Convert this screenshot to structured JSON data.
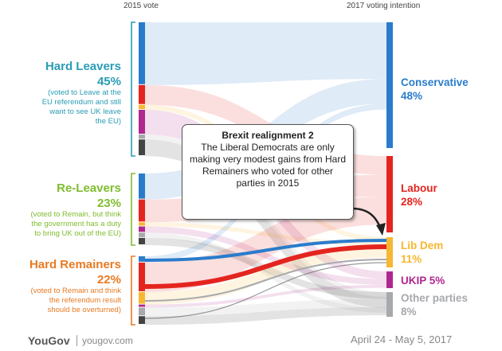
{
  "header": {
    "left": "2015 vote",
    "right": "2017 voting intention"
  },
  "chart_data": {
    "type": "sankey",
    "title": "Brexit realignment 2",
    "annotation": "The Liberal Democrats are only making very modest gains from Hard Remainers who voted for other parties in 2015",
    "left_nodes": [
      {
        "id": "hard-leavers",
        "label": "Hard Leavers",
        "pct_label": "45%",
        "value": 45,
        "color": "#2a9cb5",
        "note": [
          "(voted to Leave at the",
          "EU referendum and still",
          "want to see UK leave",
          "the EU)"
        ]
      },
      {
        "id": "re-leavers",
        "label": "Re-Leavers",
        "pct_label": "23%",
        "value": 23,
        "color": "#80bc2f",
        "note": [
          "(voted to Remain, but think",
          "the government has a duty",
          "to bring UK out of the EU)"
        ]
      },
      {
        "id": "hard-remainers",
        "label": "Hard Remainers",
        "pct_label": "22%",
        "value": 22,
        "color": "#e97a22",
        "note": [
          "(voted to Remain and think",
          "the referendum result",
          "should be overturned)"
        ]
      }
    ],
    "right_nodes": [
      {
        "id": "conservative",
        "label": "Conservative",
        "pct_label": "48%",
        "value": 48,
        "color": "#2a7ccb"
      },
      {
        "id": "labour",
        "label": "Labour",
        "pct_label": "28%",
        "value": 28,
        "color": "#e4251f"
      },
      {
        "id": "lib-dem",
        "label": "Lib Dem",
        "pct_label": "11%",
        "value": 11,
        "color": "#f7b731"
      },
      {
        "id": "ukip",
        "label": "UKIP",
        "pct_label": "5%",
        "value": 5,
        "color": "#b0288f"
      },
      {
        "id": "other-parties",
        "label": "Other parties",
        "pct_label": "8%",
        "value": 8,
        "color": "#a7a9ac"
      }
    ],
    "left_bar_segments": {
      "hard-leavers": [
        "#2a7ccb",
        "#e4251f",
        "#f7b731",
        "#b0288f",
        "#a7a9ac",
        "#444444"
      ],
      "re-leavers": [
        "#2a7ccb",
        "#e4251f",
        "#f7b731",
        "#b0288f",
        "#a7a9ac",
        "#444444"
      ],
      "hard-remainers": [
        "#2a7ccb",
        "#e4251f",
        "#f7b731",
        "#b0288f",
        "#a7a9ac",
        "#444444"
      ]
    },
    "left_bar_weights": {
      "hard-leavers": [
        38,
        12,
        3,
        15,
        3,
        10
      ],
      "re-leavers": [
        25,
        22,
        4,
        6,
        5,
        7
      ],
      "hard-remainers": [
        8,
        38,
        16,
        4,
        11,
        11
      ]
    },
    "highlighted_flows": [
      {
        "from": "hard-remainers",
        "from_party": "conservative",
        "to": "lib-dem",
        "color": "#2a7ccb"
      },
      {
        "from": "hard-remainers",
        "from_party": "labour",
        "to": "lib-dem",
        "color": "#e4251f"
      }
    ]
  },
  "footer": {
    "brand": "YouGov",
    "url": "yougov.com",
    "date_range": "April 24 - May 5, 2017"
  }
}
